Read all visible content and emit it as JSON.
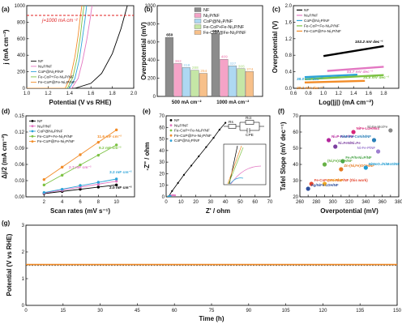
{
  "chart_data": [
    {
      "panel": "(a)",
      "type": "line",
      "xlabel": "Potential (V vs RHE)",
      "ylabel": "j (mA cm⁻²)",
      "xlim": [
        1.0,
        2.0
      ],
      "ylim": [
        0,
        1000
      ],
      "xticks": [
        "1.0",
        "1.2",
        "1.4",
        "1.6",
        "1.8",
        "2.0"
      ],
      "yticks": [
        "0",
        "200",
        "400",
        "600",
        "800",
        "1000"
      ],
      "annotation": "j=1000 mA cm⁻²",
      "series": [
        {
          "name": "NF",
          "color": "#000000",
          "x": [
            1.45,
            1.6,
            1.7,
            1.8,
            1.88,
            1.94
          ],
          "y": [
            0,
            60,
            180,
            420,
            720,
            1000
          ]
        },
        {
          "name": "Ni₂P/NF",
          "color": "#e377c2",
          "x": [
            1.42,
            1.48,
            1.52,
            1.56,
            1.59,
            1.61
          ],
          "y": [
            0,
            120,
            320,
            580,
            820,
            1000
          ]
        },
        {
          "name": "CoP@Ni₂P/NF",
          "color": "#2ca3d8",
          "x": [
            1.4,
            1.45,
            1.49,
            1.52,
            1.545,
            1.56
          ],
          "y": [
            0,
            120,
            340,
            600,
            830,
            1000
          ]
        },
        {
          "name": "Fe-CoP+Fe-Ni₂P/NF",
          "color": "#7cc243",
          "x": [
            1.38,
            1.43,
            1.47,
            1.5,
            1.52,
            1.535
          ],
          "y": [
            0,
            130,
            360,
            620,
            850,
            1000
          ]
        },
        {
          "name": "Fe-CoP@Fe-Ni₂P/NF",
          "color": "#f28c28",
          "x": [
            1.36,
            1.41,
            1.45,
            1.48,
            1.5,
            1.515
          ],
          "y": [
            0,
            140,
            380,
            640,
            860,
            1000
          ]
        }
      ]
    },
    {
      "panel": "(b)",
      "type": "bar",
      "ylabel": "Overpotential (mV)",
      "ylim": [
        0,
        1000
      ],
      "yticks": [
        "0",
        "200",
        "400",
        "600",
        "800",
        "1000"
      ],
      "categories": [
        "500 mA cm⁻²",
        "1000 mA cm⁻²"
      ],
      "series": [
        {
          "name": "NF",
          "color": "#8c8c8c",
          "values": [
            650,
            693
          ]
        },
        {
          "name": "Ni₂P/NF",
          "color": "#f5a3c7",
          "values": [
            362,
            409
          ]
        },
        {
          "name": "CoP@Ni₂P/NF",
          "color": "#aed8f2",
          "values": [
            318,
            337
          ]
        },
        {
          "name": "Fe-CoP+Fe-Ni₂P/NF",
          "color": "#c5e6a6",
          "values": [
            288,
            305
          ]
        },
        {
          "name": "Fe-CoP@Fe-Ni₂P/NF",
          "color": "#f7c08a",
          "values": [
            254,
            274
          ]
        }
      ]
    },
    {
      "panel": "(c)",
      "type": "line",
      "xlabel": "Log(|j|) (mA cm⁻²)",
      "ylabel": "Overpotential (V)",
      "xlim": [
        0.6,
        2.0
      ],
      "ylim": [
        0.0,
        2.0
      ],
      "xticks": [
        "0.6",
        "0.8",
        "1.0",
        "1.2",
        "1.4",
        "1.6",
        "1.8"
      ],
      "yticks": [
        "0.0",
        "0.4",
        "0.8",
        "1.2",
        "1.6",
        "2.0"
      ],
      "series": [
        {
          "name": "NF",
          "color": "#000000",
          "slope_label": "102.2 mV dec⁻¹",
          "x": [
            1.0,
            1.8
          ],
          "y": [
            0.78,
            1.02
          ]
        },
        {
          "name": "Ni₂P/NF",
          "color": "#e377c2",
          "slope_label": "53.7 mV dec⁻¹",
          "x": [
            1.05,
            1.8
          ],
          "y": [
            0.42,
            0.52
          ]
        },
        {
          "name": "CoP@Ni₂P/NF",
          "color": "#2ca3d8",
          "slope_label": "38.0 mV dec⁻¹",
          "x": [
            0.75,
            1.45
          ],
          "y": [
            0.27,
            0.33
          ]
        },
        {
          "name": "Fe-CoP+Fe-Ni₂P/NF",
          "color": "#7cc243",
          "slope_label": "34.8 mV dec⁻¹",
          "x": [
            0.75,
            1.8
          ],
          "y": [
            0.22,
            0.32
          ]
        },
        {
          "name": "Fe-CoP@Fe-Ni₂P/NF",
          "color": "#f28c28",
          "slope_label": "28.1 mV dec⁻¹",
          "x": [
            0.75,
            1.55
          ],
          "y": [
            0.14,
            0.18
          ]
        }
      ]
    },
    {
      "panel": "(d)",
      "type": "scatter",
      "xlabel": "Scan rates (mV s⁻¹)",
      "ylabel": "Δj/2 (mA cm⁻²)",
      "xlim": [
        0,
        12
      ],
      "ylim": [
        0.0,
        0.15
      ],
      "xticks": [
        "2",
        "4",
        "6",
        "8",
        "10"
      ],
      "yticks": [
        "0.00",
        "0.03",
        "0.06",
        "0.09",
        "0.12",
        "0.15"
      ],
      "series": [
        {
          "name": "NF",
          "color": "#000000",
          "cdl_label": "2.0 mF cm⁻²",
          "x": [
            2,
            4,
            6,
            8,
            10
          ],
          "y": [
            0.006,
            0.01,
            0.014,
            0.018,
            0.022
          ]
        },
        {
          "name": "Ni₂P/NF",
          "color": "#e377c2",
          "cdl_label": "2.7 mF cm⁻²",
          "x": [
            2,
            4,
            6,
            8,
            10
          ],
          "y": [
            0.007,
            0.012,
            0.018,
            0.023,
            0.029
          ]
        },
        {
          "name": "CoP@Ni₂P/NF",
          "color": "#2ca3d8",
          "cdl_label": "3.2 mF cm⁻²",
          "x": [
            2,
            4,
            6,
            8,
            10
          ],
          "y": [
            0.008,
            0.014,
            0.021,
            0.027,
            0.033
          ]
        },
        {
          "name": "Fe-CoP+Fe-Ni₂P/NF",
          "color": "#7cc243",
          "cdl_label": "9.2 mF cm⁻²",
          "x": [
            2,
            4,
            6,
            8,
            10
          ],
          "y": [
            0.022,
            0.04,
            0.059,
            0.077,
            0.096
          ]
        },
        {
          "name": "Fe-CoP@Fe-Ni₂P/NF",
          "color": "#f28c28",
          "cdl_label": "11.6 mF cm⁻²",
          "x": [
            2,
            4,
            6,
            8,
            10
          ],
          "y": [
            0.032,
            0.055,
            0.078,
            0.101,
            0.124
          ]
        }
      ]
    },
    {
      "panel": "(e)",
      "type": "scatter",
      "xlabel": "Z' / ohm",
      "ylabel": "-Z'' / ohm",
      "xlim": [
        0,
        70
      ],
      "ylim": [
        0,
        70
      ],
      "xticks": [
        "0",
        "10",
        "20",
        "30",
        "40",
        "50",
        "60",
        "70"
      ],
      "yticks": [
        "0",
        "10",
        "20",
        "30",
        "40",
        "50",
        "60",
        "70"
      ],
      "circuit_labels": [
        "Rs",
        "Rct",
        "CPE"
      ],
      "series": [
        {
          "name": "NF",
          "color": "#000000",
          "x": [
            1.5,
            4,
            8,
            12,
            17,
            22,
            27,
            32,
            36,
            40
          ],
          "y": [
            0,
            5,
            12,
            19,
            27,
            35,
            43,
            51,
            58,
            64
          ]
        },
        {
          "name": "Ni₂P/NF",
          "color": "#e377c2",
          "x": [
            1.2,
            2,
            3,
            4,
            5,
            6
          ],
          "y": [
            0,
            0.8,
            1.2,
            1.4,
            1.4,
            1.3
          ]
        },
        {
          "name": "Fe-CoP+Fe-Ni₂P/NF",
          "color": "#7cc243",
          "x": [
            1.0,
            1.5,
            2.0,
            2.5
          ],
          "y": [
            0,
            0.4,
            0.6,
            0.6
          ]
        },
        {
          "name": "Fe-CoP@Fe-Ni₂P/NF",
          "color": "#f28c28",
          "x": [
            0.9,
            1.3,
            1.8,
            2.2
          ],
          "y": [
            0,
            0.3,
            0.5,
            0.5
          ]
        },
        {
          "name": "CoP@Ni₂P/NF",
          "color": "#2ca3d8",
          "x": [
            1.1,
            1.7,
            2.4,
            3.0
          ],
          "y": [
            0,
            0.5,
            0.8,
            0.8
          ]
        }
      ]
    },
    {
      "panel": "(f)",
      "type": "scatter",
      "xlabel": "Overpotential (mV)",
      "ylabel": "Tafel Slope (mV dec⁻¹)",
      "xlim": [
        260,
        380
      ],
      "ylim": [
        20,
        70
      ],
      "xticks": [
        "260",
        "270",
        "280",
        "290",
        "300",
        "310",
        "320",
        "330",
        "340",
        "350",
        "360",
        "370",
        "380"
      ],
      "yticks": [
        "20",
        "30",
        "40",
        "50",
        "60",
        "70"
      ],
      "points": [
        {
          "label": "NiFe-LDH/NiS",
          "color": "#d7267a",
          "x": 325,
          "y": 60
        },
        {
          "label": "Ni₂P-Fe₂P/NF",
          "color": "#b4279d",
          "x": 295,
          "y": 55
        },
        {
          "label": "Ni₃FeN/Ni₃Fe",
          "color": "#7c3fa0",
          "x": 303,
          "y": 51
        },
        {
          "label": "NiMoFe-CoNiN/NF",
          "color": "#2a7fb8",
          "x": 350,
          "y": 55
        },
        {
          "label": "Fe₂P/N-Ni₂P/NF",
          "color": "#47a447",
          "x": 312,
          "y": 42
        },
        {
          "label": "(Ni,Fe)OOH/NF",
          "color": "#67b146",
          "x": 290,
          "y": 40
        },
        {
          "label": "Zn-(Ni,Fe)OOH/NF",
          "color": "#e57a23",
          "x": 310,
          "y": 37
        },
        {
          "label": "NiMoO₄/NiMoS/NF",
          "color": "#1d9bd1",
          "x": 340,
          "y": 38
        },
        {
          "label": "Fe-CoP@Fe-Ni₂P/NF (this work)",
          "color": "#e4452e",
          "x": 274,
          "y": 28
        },
        {
          "label": "FeNiP/NF",
          "color": "#f0a824",
          "x": 290,
          "y": 28
        },
        {
          "label": "Ag/NiFe LDH/NF",
          "color": "#2f4f9c",
          "x": 270,
          "y": 25
        },
        {
          "label": "Ni-Fe-P/NF",
          "color": "#9e7fd0",
          "x": 355,
          "y": 48
        },
        {
          "label": "Ni-Fe-Mo/Fe",
          "color": "#888888",
          "x": 370,
          "y": 61
        }
      ]
    },
    {
      "panel": "(g)",
      "type": "line",
      "xlabel": "Time (h)",
      "ylabel": "Potential (V vs RHE)",
      "xlim": [
        0,
        150
      ],
      "ylim": [
        0,
        3
      ],
      "xticks": [
        "0",
        "15",
        "30",
        "45",
        "60",
        "75",
        "90",
        "105",
        "120",
        "135",
        "150"
      ],
      "yticks": [
        "0",
        "1",
        "2",
        "3"
      ],
      "series": [
        {
          "name": "Fe-CoP@Fe-Ni₂P/NF",
          "color": "#f28c28",
          "x": [
            0,
            150
          ],
          "y": [
            1.51,
            1.51
          ]
        }
      ]
    }
  ]
}
